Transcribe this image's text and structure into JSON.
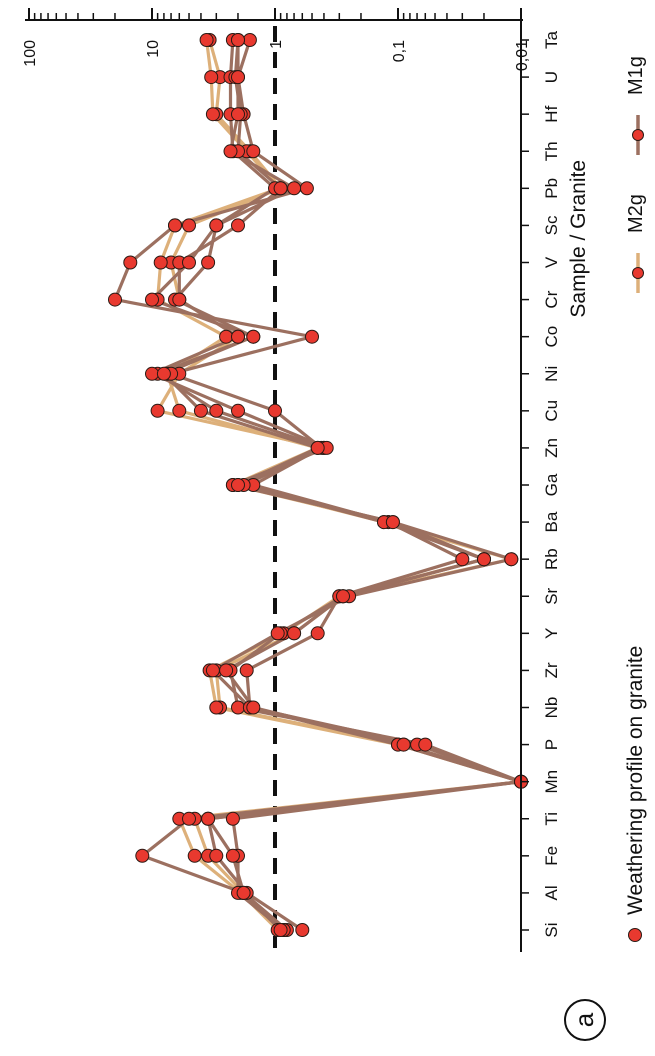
{
  "panel_label": "a",
  "chart_data": {
    "type": "line",
    "xlabel": "",
    "ylabel": "Sample / Granite",
    "yscale": "log",
    "ylim": [
      0.01,
      100
    ],
    "ytick_labels": [
      "100",
      "10",
      "1",
      "0,1",
      "0,01"
    ],
    "grid": false,
    "reference_line": {
      "y": 1,
      "style": "dashed"
    },
    "categories": [
      "Si",
      "Al",
      "Fe",
      "Ti",
      "Mn",
      "P",
      "Nb",
      "Zr",
      "Y",
      "Sr",
      "Rb",
      "Ba",
      "Ga",
      "Zn",
      "Cu",
      "Ni",
      "Co",
      "Cr",
      "V",
      "Sc",
      "Pb",
      "Th",
      "Hf",
      "U",
      "Ta"
    ],
    "legend": {
      "placement": "bottom",
      "title": "Weathering profile on granite",
      "entries": [
        {
          "name": "M2g",
          "color": "#ddb07a"
        },
        {
          "name": "M1g",
          "color": "#9c7060"
        }
      ]
    },
    "series": [
      {
        "name": "M2g",
        "color": "#ddb07a",
        "values": [
          0.85,
          1.8,
          3.5,
          4.5,
          0.01,
          0.09,
          2.8,
          3.0,
          0.7,
          0.28,
          0.012,
          0.13,
          2.0,
          0.4,
          9.0,
          6.0,
          2.0,
          6.0,
          7.0,
          5.0,
          0.9,
          1.6,
          3.0,
          2.8,
          3.4
        ]
      },
      {
        "name": "M2g",
        "color": "#ddb07a",
        "values": [
          0.95,
          1.9,
          4.5,
          6.0,
          0.01,
          0.1,
          3.0,
          3.4,
          0.85,
          0.3,
          0.02,
          0.12,
          2.2,
          0.45,
          6.0,
          7.5,
          2.5,
          9.0,
          8.5,
          6.5,
          0.92,
          1.7,
          3.2,
          3.3,
          3.6
        ]
      },
      {
        "name": "M1g",
        "color": "#9c7060",
        "values": [
          0.8,
          1.8,
          12.0,
          5.0,
          0.01,
          0.07,
          1.6,
          1.7,
          0.45,
          0.3,
          0.03,
          0.12,
          1.5,
          0.42,
          1.0,
          7.0,
          0.5,
          20.0,
          15.0,
          6.5,
          0.55,
          1.5,
          1.8,
          2.0,
          1.6
        ]
      },
      {
        "name": "M1g",
        "color": "#9c7060",
        "values": [
          0.85,
          2.0,
          2.0,
          2.2,
          0.01,
          0.06,
          2.0,
          2.3,
          0.9,
          0.28,
          0.02,
          0.13,
          1.8,
          0.4,
          3.0,
          9.0,
          1.5,
          6.5,
          3.5,
          3.0,
          1.0,
          2.2,
          2.3,
          2.3,
          2.2
        ]
      },
      {
        "name": "M1g",
        "color": "#9c7060",
        "values": [
          0.6,
          1.7,
          3.0,
          3.5,
          0.01,
          0.1,
          1.6,
          3.2,
          0.95,
          0.25,
          0.012,
          0.11,
          2.2,
          0.38,
          2.0,
          10.0,
          2.0,
          6.0,
          6.0,
          2.0,
          0.9,
          2.0,
          1.9,
          2.1,
          2.0
        ]
      },
      {
        "name": "M1g",
        "color": "#9c7060",
        "values": [
          0.9,
          1.8,
          2.2,
          3.5,
          0.01,
          0.09,
          1.5,
          2.5,
          0.7,
          0.28,
          0.02,
          0.11,
          2.0,
          0.45,
          4.0,
          8.0,
          1.5,
          10.0,
          5.0,
          3.0,
          0.7,
          2.3,
          2.0,
          2.0,
          2.0
        ]
      }
    ]
  }
}
